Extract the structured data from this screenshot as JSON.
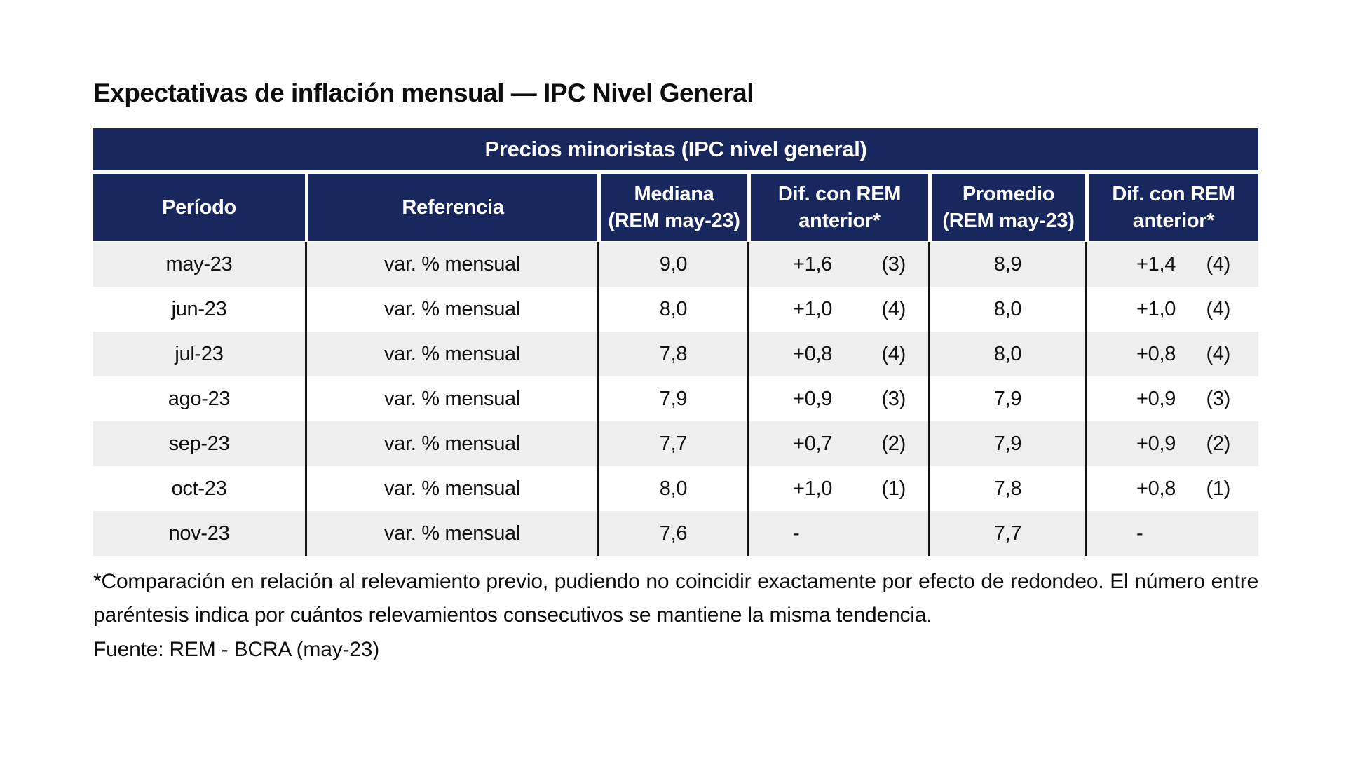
{
  "page": {
    "title": "Expectativas de inflación mensual — IPC Nivel General",
    "footnote": "*Comparación en relación al relevamiento previo, pudiendo no coincidir exactamente por efecto de redondeo. El número entre paréntesis indica por cuántos relevamientos consecutivos se mantiene la misma tendencia.",
    "source": "Fuente: REM - BCRA (may-23)"
  },
  "table": {
    "band_title": "Precios minoristas (IPC nivel general)",
    "columns": {
      "periodo": "Período",
      "referencia": "Referencia",
      "mediana_l1": "Mediana",
      "mediana_l2": "(REM may-23)",
      "dif1_l1": "Dif. con REM",
      "dif1_l2": "anterior*",
      "promedio_l1": "Promedio",
      "promedio_l2": "(REM may-23)",
      "dif2_l1": "Dif. con REM",
      "dif2_l2": "anterior*"
    },
    "rows": [
      {
        "periodo": "may-23",
        "referencia": "var. % mensual",
        "mediana": "9,0",
        "dif1_valor": "+1,6",
        "dif1_n": "(3)",
        "promedio": "8,9",
        "dif2_valor": "+1,4",
        "dif2_n": "(4)"
      },
      {
        "periodo": "jun-23",
        "referencia": "var. % mensual",
        "mediana": "8,0",
        "dif1_valor": "+1,0",
        "dif1_n": "(4)",
        "promedio": "8,0",
        "dif2_valor": "+1,0",
        "dif2_n": "(4)"
      },
      {
        "periodo": "jul-23",
        "referencia": "var. % mensual",
        "mediana": "7,8",
        "dif1_valor": "+0,8",
        "dif1_n": "(4)",
        "promedio": "8,0",
        "dif2_valor": "+0,8",
        "dif2_n": "(4)"
      },
      {
        "periodo": "ago-23",
        "referencia": "var. % mensual",
        "mediana": "7,9",
        "dif1_valor": "+0,9",
        "dif1_n": "(3)",
        "promedio": "7,9",
        "dif2_valor": "+0,9",
        "dif2_n": "(3)"
      },
      {
        "periodo": "sep-23",
        "referencia": "var. % mensual",
        "mediana": "7,7",
        "dif1_valor": "+0,7",
        "dif1_n": "(2)",
        "promedio": "7,9",
        "dif2_valor": "+0,9",
        "dif2_n": "(2)"
      },
      {
        "periodo": "oct-23",
        "referencia": "var. % mensual",
        "mediana": "8,0",
        "dif1_valor": "+1,0",
        "dif1_n": "(1)",
        "promedio": "7,8",
        "dif2_valor": "+0,8",
        "dif2_n": "(1)"
      },
      {
        "periodo": "nov-23",
        "referencia": "var. % mensual",
        "mediana": "7,6",
        "dif1_valor": "-",
        "dif1_n": "",
        "promedio": "7,7",
        "dif2_valor": "-",
        "dif2_n": ""
      }
    ]
  },
  "colors": {
    "header_navy": "#18275e",
    "row_alt_gray": "#efefef",
    "divider_black": "#141414",
    "text_black": "#0d0d0d"
  }
}
